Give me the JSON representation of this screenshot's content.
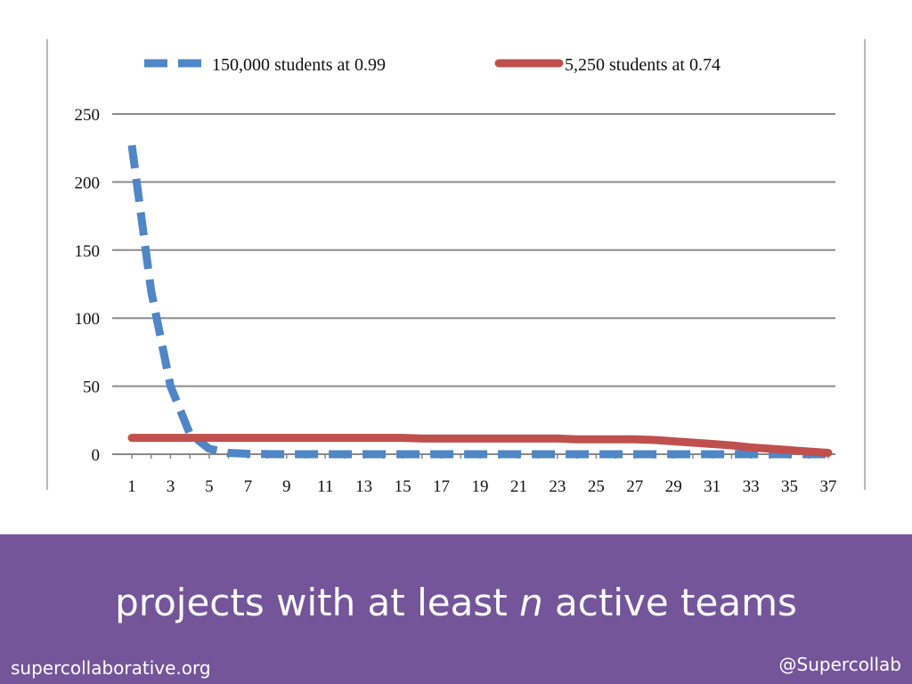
{
  "chart_data": {
    "type": "line",
    "x": [
      1,
      2,
      3,
      4,
      5,
      6,
      7,
      8,
      9,
      10,
      11,
      12,
      13,
      14,
      15,
      16,
      17,
      18,
      19,
      20,
      21,
      22,
      23,
      24,
      25,
      26,
      27,
      28,
      29,
      30,
      31,
      32,
      33,
      34,
      35,
      36,
      37
    ],
    "xticks": [
      1,
      3,
      5,
      7,
      9,
      11,
      13,
      15,
      17,
      19,
      21,
      23,
      25,
      27,
      29,
      31,
      33,
      35,
      37
    ],
    "ylim": [
      0,
      250
    ],
    "yticks": [
      0,
      50,
      100,
      150,
      200,
      250
    ],
    "grid": true,
    "legend_position": "top",
    "series": [
      {
        "name": "150,000 students at 0.99",
        "color": "#4f86c6",
        "style": "dashed",
        "values": [
          227,
          120,
          50,
          15,
          4,
          1,
          0.3,
          0.1,
          0,
          0,
          0,
          0,
          0,
          0,
          0,
          0,
          0,
          0,
          0,
          0,
          0,
          0,
          0,
          0,
          0,
          0,
          0,
          0,
          0,
          0,
          0,
          0,
          0,
          0,
          0,
          0,
          0
        ]
      },
      {
        "name": "5,250 students at 0.74",
        "color": "#c0504d",
        "style": "solid",
        "values": [
          12,
          12,
          12,
          12,
          12,
          12,
          12,
          12,
          12,
          12,
          12,
          12,
          12,
          12,
          12,
          11.5,
          11.5,
          11.5,
          11.5,
          11.5,
          11.5,
          11.5,
          11.5,
          11,
          11,
          11,
          11,
          10.5,
          9.5,
          8.5,
          7.5,
          6.5,
          5,
          4,
          3,
          2,
          1
        ]
      }
    ]
  },
  "footer": {
    "caption_pre": "projects with at least ",
    "caption_em": "n",
    "caption_post": " active teams",
    "site": "supercollaborative.org",
    "handle": "@Supercollab"
  }
}
